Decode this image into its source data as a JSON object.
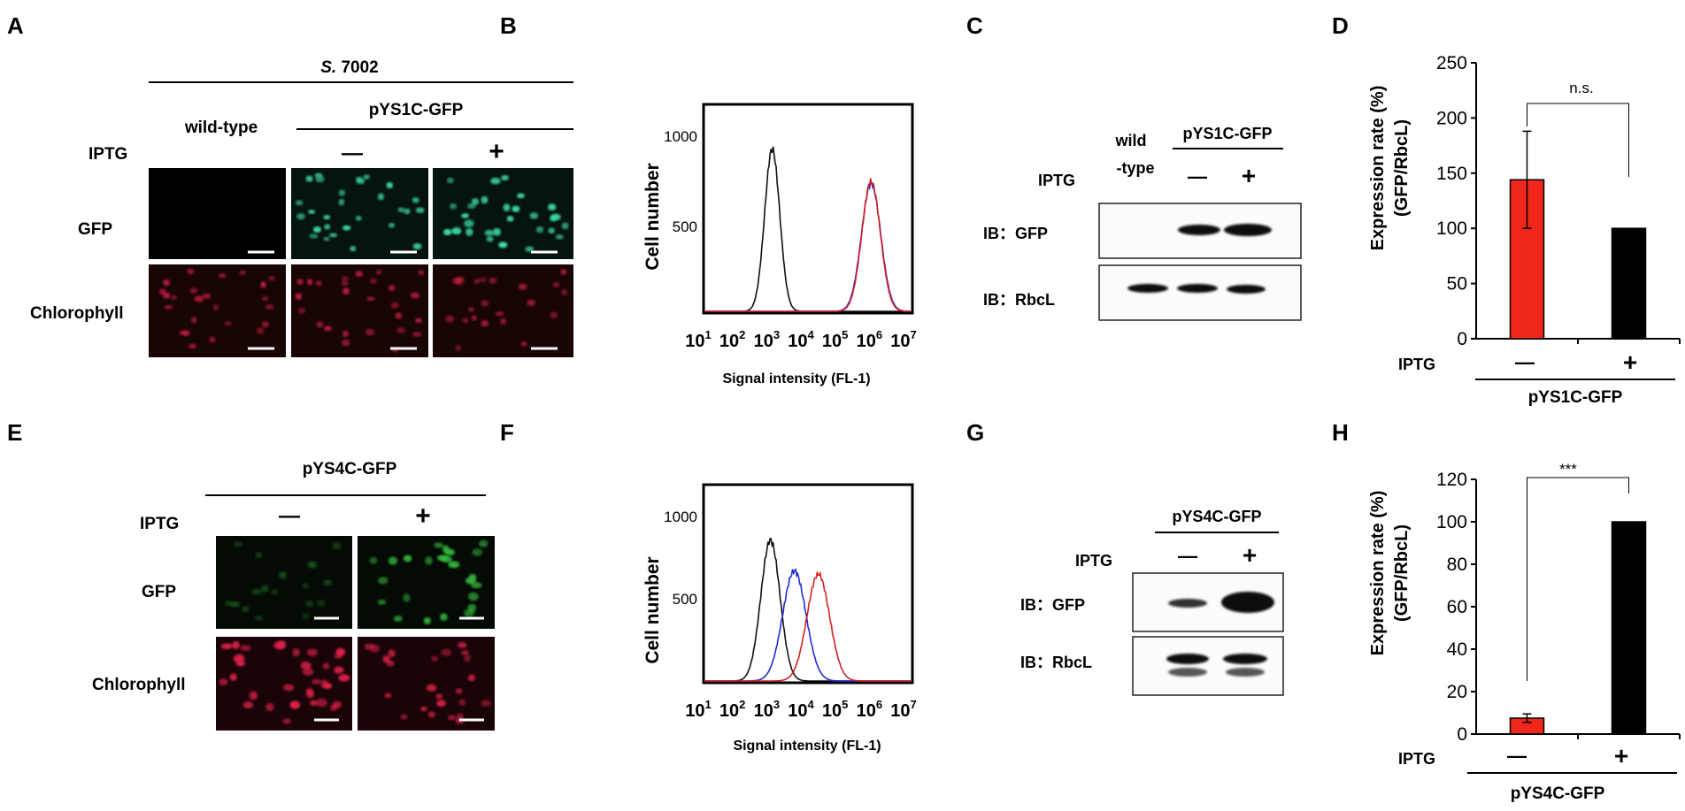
{
  "colors": {
    "red_bar": "#f0271a",
    "black_bar": "#000000",
    "gfp_bright": "#3ee0b0",
    "gfp_dim": "#38c040",
    "chloro": "#e0204a",
    "blot_band": "#111111",
    "hist_blue": "#1f2bd6",
    "hist_red": "#d42020"
  },
  "panel_labels": [
    "A",
    "B",
    "C",
    "D",
    "E",
    "F",
    "G",
    "H"
  ],
  "A": {
    "strain_prefix": "S.",
    "strain_suffix": "7002",
    "col_wild": "wild-type",
    "col_plasmid": "pYS1C-GFP",
    "iptg": "IPTG",
    "minus": "—",
    "plus": "+",
    "row_gfp": "GFP",
    "row_chl": "Chlorophyll"
  },
  "B": {
    "ylabel": "Cell number",
    "xlabel": "Signal intensity (FL-1)",
    "yticks": [
      "500",
      "1000"
    ],
    "xticks": [
      {
        "b": "10",
        "e": "1"
      },
      {
        "b": "10",
        "e": "2"
      },
      {
        "b": "10",
        "e": "3"
      },
      {
        "b": "10",
        "e": "4"
      },
      {
        "b": "10",
        "e": "5"
      },
      {
        "b": "10",
        "e": "6"
      },
      {
        "b": "10",
        "e": "7"
      }
    ]
  },
  "C": {
    "wild1": "wild",
    "wild2": "-type",
    "plasmid": "pYS1C-GFP",
    "iptg": "IPTG",
    "minus": "—",
    "plus": "+",
    "row_gfp": "IB：GFP",
    "row_rbcl": "IB：RbcL"
  },
  "D": {
    "ylabel": "Expression rate (%)",
    "ylabel2": "(GFP/RbcL)",
    "yticks": [
      "0",
      "50",
      "100",
      "150",
      "200",
      "250"
    ],
    "sig": "n.s.",
    "iptg": "IPTG",
    "minus": "—",
    "plus": "+",
    "group": "pYS1C-GFP"
  },
  "E": {
    "plasmid": "pYS4C-GFP",
    "iptg": "IPTG",
    "minus": "—",
    "plus": "+",
    "row_gfp": "GFP",
    "row_chl": "Chlorophyll"
  },
  "F": {
    "ylabel": "Cell number",
    "xlabel": "Signal intensity (FL-1)",
    "yticks": [
      "500",
      "1000"
    ],
    "xticks": [
      {
        "b": "10",
        "e": "1"
      },
      {
        "b": "10",
        "e": "2"
      },
      {
        "b": "10",
        "e": "3"
      },
      {
        "b": "10",
        "e": "4"
      },
      {
        "b": "10",
        "e": "5"
      },
      {
        "b": "10",
        "e": "6"
      },
      {
        "b": "10",
        "e": "7"
      }
    ]
  },
  "G": {
    "plasmid": "pYS4C-GFP",
    "iptg": "IPTG",
    "minus": "—",
    "plus": "+",
    "row_gfp": "IB：GFP",
    "row_rbcl": "IB：RbcL"
  },
  "H": {
    "ylabel": "Expression rate (%)",
    "ylabel2": "(GFP/RbcL)",
    "yticks": [
      "0",
      "20",
      "40",
      "60",
      "80",
      "100",
      "120"
    ],
    "sig": "***",
    "iptg": "IPTG",
    "minus": "—",
    "plus": "+",
    "group": "pYS4C-GFP"
  },
  "chart_data": [
    {
      "type": "line",
      "panel": "B",
      "x_scale": "log",
      "x": [
        10,
        100,
        1000,
        10000,
        100000,
        1000000,
        10000000
      ],
      "series": [
        {
          "color": "black",
          "peak_x": 900,
          "peak_y": 950
        },
        {
          "color": "blue",
          "peak_x": 700000,
          "peak_y": 750
        },
        {
          "color": "red",
          "peak_x": 700000,
          "peak_y": 760
        }
      ],
      "ylim": [
        0,
        1200
      ],
      "xlim": [
        10,
        10000000
      ]
    },
    {
      "type": "bar",
      "panel": "D",
      "categories": [
        "—",
        "+"
      ],
      "values": [
        144,
        100
      ],
      "errors": [
        44,
        0
      ],
      "ylim": [
        0,
        250
      ]
    },
    {
      "type": "line",
      "panel": "F",
      "x_scale": "log",
      "x": [
        10,
        100,
        1000,
        10000,
        100000,
        1000000,
        10000000
      ],
      "series": [
        {
          "color": "black",
          "peak_x": 800,
          "peak_y": 870
        },
        {
          "color": "blue",
          "peak_x": 4000,
          "peak_y": 680
        },
        {
          "color": "red",
          "peak_x": 20000,
          "peak_y": 660
        }
      ],
      "ylim": [
        0,
        1200
      ],
      "xlim": [
        10,
        10000000
      ]
    },
    {
      "type": "bar",
      "panel": "H",
      "categories": [
        "—",
        "+"
      ],
      "values": [
        7.5,
        100
      ],
      "errors": [
        2,
        0
      ],
      "ylim": [
        0,
        120
      ]
    }
  ]
}
